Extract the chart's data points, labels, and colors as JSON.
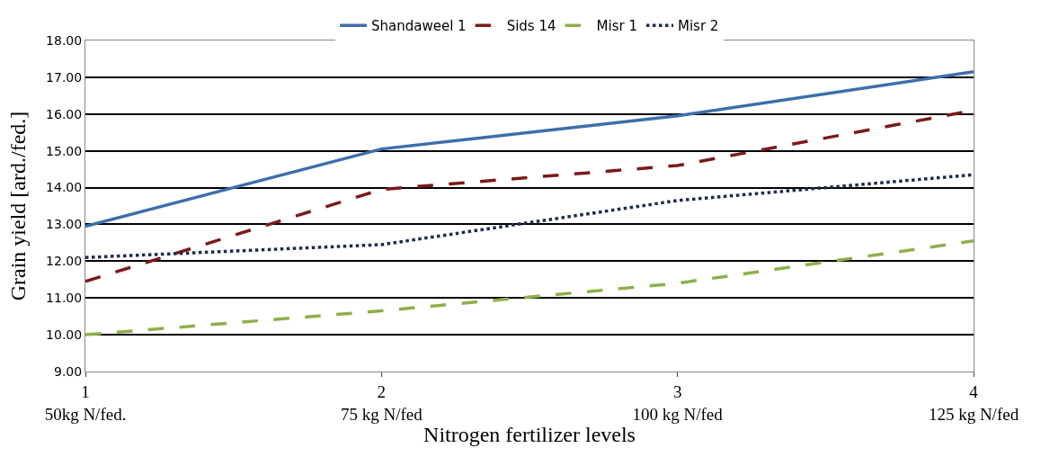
{
  "chart_data": {
    "type": "line",
    "xlabel": "Nitrogen fertilizer levels",
    "ylabel": "Grain yield [ard./fed.]",
    "categories": [
      "1\n50kg N/fed.",
      "2\n75 kg N/fed",
      "3\n100 kg N/fed",
      "4\n125 kg N/fed"
    ],
    "ylim": [
      9,
      18
    ],
    "yticks": [
      {
        "value": 9,
        "label": "9.00"
      },
      {
        "value": 10,
        "label": "10.00"
      },
      {
        "value": 11,
        "label": "11.00"
      },
      {
        "value": 12,
        "label": "12.00"
      },
      {
        "value": 13,
        "label": "13.00"
      },
      {
        "value": 14,
        "label": "14.00"
      },
      {
        "value": 15,
        "label": "15.00"
      },
      {
        "value": 16,
        "label": "16.00"
      },
      {
        "value": 17,
        "label": "17.00"
      },
      {
        "value": 18,
        "label": "18.00"
      }
    ],
    "grid": "y",
    "legend": "top",
    "marker": "none",
    "series": [
      {
        "name": "Shandaweel 1",
        "color": "#3c6fab",
        "line_style": "solid",
        "values": [
          12.95,
          15.05,
          15.95,
          17.15
        ]
      },
      {
        "name": "Sids 14",
        "color": "#7b1a1a",
        "line_style": "dashed",
        "values": [
          11.45,
          13.95,
          14.6,
          16.1
        ]
      },
      {
        "name": "Misr 1",
        "color": "#8db04a",
        "line_style": "dashed",
        "values": [
          10.0,
          10.65,
          11.4,
          12.55
        ]
      },
      {
        "name": "Misr 2",
        "color": "#1f2a4a",
        "line_style": "dotted",
        "values": [
          12.1,
          12.45,
          13.65,
          14.35
        ]
      }
    ]
  }
}
